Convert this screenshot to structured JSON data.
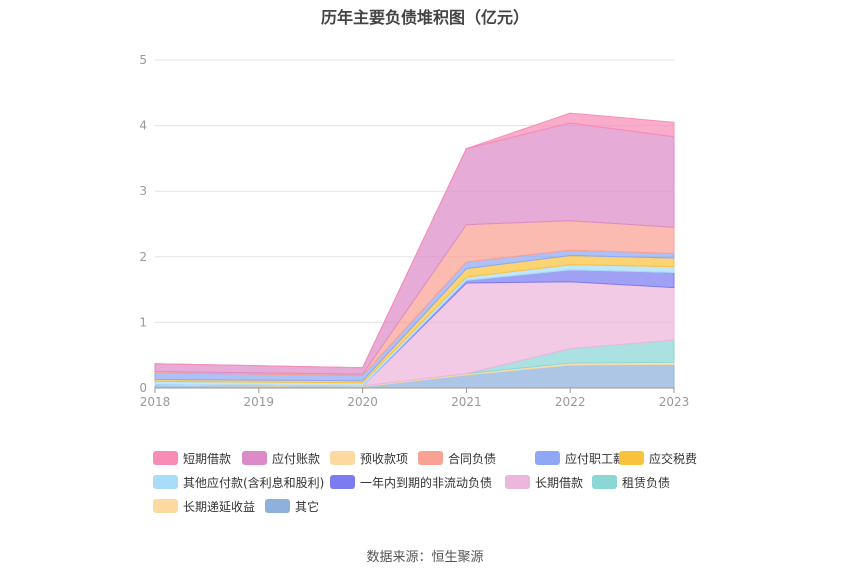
{
  "chart_data": {
    "type": "area",
    "stacked": true,
    "title": "历年主要负债堆积图（亿元）",
    "x": [
      "2018",
      "2019",
      "2020",
      "2021",
      "2022",
      "2023"
    ],
    "ylim": [
      0,
      5
    ],
    "yticks": [
      "0",
      "1",
      "2",
      "3",
      "4",
      "5"
    ],
    "grid": true,
    "legend_position": "bottom",
    "series": [
      {
        "name": "其它",
        "color": "#8fb0dc",
        "values": [
          0.04,
          0.03,
          0.02,
          0.2,
          0.35,
          0.36
        ]
      },
      {
        "name": "长期递延收益",
        "color": "#fcd9a0",
        "values": [
          0.01,
          0.01,
          0.01,
          0.02,
          0.03,
          0.03
        ]
      },
      {
        "name": "租赁负债",
        "color": "#8ad7d6",
        "values": [
          0,
          0,
          0,
          0,
          0.22,
          0.34
        ]
      },
      {
        "name": "长期借款",
        "color": "#edb6dc",
        "values": [
          0,
          0,
          0,
          1.38,
          1.02,
          0.8
        ]
      },
      {
        "name": "一年内到期的非流动负债",
        "color": "#7c7cf0",
        "values": [
          0,
          0,
          0,
          0.04,
          0.18,
          0.23
        ]
      },
      {
        "name": "其他应付款(含利息和股利)",
        "color": "#a8dcf8",
        "values": [
          0.05,
          0.05,
          0.05,
          0.05,
          0.08,
          0.09
        ]
      },
      {
        "name": "应交税费",
        "color": "#f9c23c",
        "values": [
          0.03,
          0.03,
          0.03,
          0.13,
          0.14,
          0.13
        ]
      },
      {
        "name": "应付职工薪酬",
        "color": "#8fa8f5",
        "values": [
          0.1,
          0.09,
          0.08,
          0.1,
          0.08,
          0.07
        ]
      },
      {
        "name": "合同负债",
        "color": "#f9a192",
        "values": [
          0.02,
          0.02,
          0.02,
          0.57,
          0.45,
          0.4
        ]
      },
      {
        "name": "预收款项",
        "color": "#fcd9a0",
        "values": [
          0,
          0,
          0,
          0,
          0,
          0
        ]
      },
      {
        "name": "应付账款",
        "color": "#dc8bc8",
        "values": [
          0.12,
          0.11,
          0.1,
          1.16,
          1.49,
          1.38
        ]
      },
      {
        "name": "短期借款",
        "color": "#f78db5",
        "values": [
          0,
          0,
          0,
          0,
          0.15,
          0.22
        ]
      }
    ],
    "legend_order": [
      "短期借款",
      "应付账款",
      "预收款项",
      "合同负债",
      "应付职工薪酬",
      "应交税费",
      "其他应付款(含利息和股利)",
      "一年内到期的非流动负债",
      "长期借款",
      "租赁负债",
      "长期递延收益",
      "其它"
    ]
  },
  "footer": {
    "source": "数据来源：恒生聚源"
  }
}
